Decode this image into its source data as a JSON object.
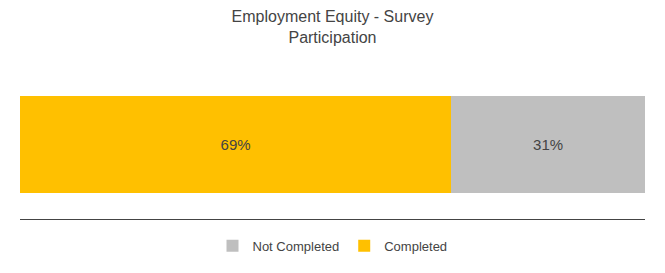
{
  "chart_data": {
    "type": "bar",
    "title": "Employment Equity - Survey\nParticipation",
    "orientation": "horizontal",
    "stacked": true,
    "categories": [
      null
    ],
    "series": [
      {
        "name": "Completed",
        "color": "#FFC000",
        "values": [
          69
        ],
        "value_labels": [
          "69%"
        ]
      },
      {
        "name": "Not Completed",
        "color": "#BFBFBF",
        "values": [
          31
        ],
        "value_labels": [
          "31%"
        ]
      }
    ],
    "xlim": [
      0,
      100
    ],
    "grid": false,
    "legend": "bottom",
    "data_labels": true,
    "tick_labels": false
  }
}
